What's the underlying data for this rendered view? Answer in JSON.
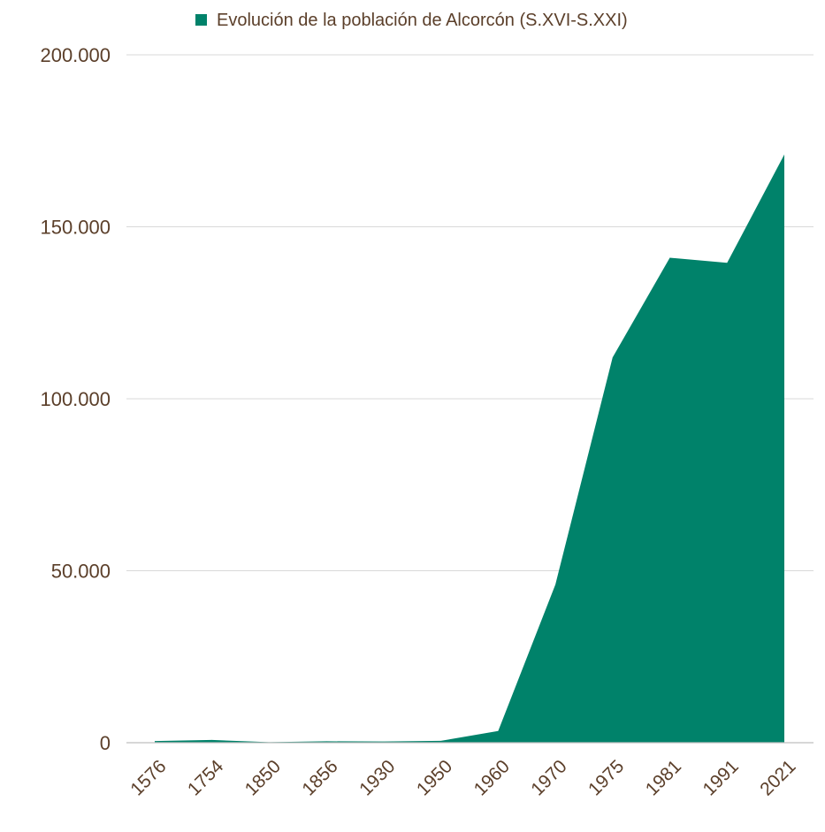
{
  "chart_data": {
    "type": "area",
    "legend": {
      "position": "top-center",
      "entries": [
        {
          "label": "Evolución de la población de Alcorcón (S.XVI-S.XXI)",
          "color": "#00826a"
        }
      ]
    },
    "categories": [
      "1576",
      "1754",
      "1850",
      "1856",
      "1930",
      "1950",
      "1960",
      "1970",
      "1975",
      "1981",
      "1991",
      "2021"
    ],
    "series": [
      {
        "name": "Evolución de la población de Alcorcón (S.XVI-S.XXI)",
        "color": "#00826a",
        "values": [
          500,
          800,
          150,
          400,
          350,
          550,
          3400,
          46000,
          112000,
          141000,
          139500,
          171000
        ]
      }
    ],
    "ylim": [
      0,
      200000
    ],
    "yticks": [
      {
        "value": 0,
        "label": "0"
      },
      {
        "value": 50000,
        "label": "50.000"
      },
      {
        "value": 100000,
        "label": "100.000"
      },
      {
        "value": 150000,
        "label": "150.000"
      },
      {
        "value": 200000,
        "label": "200.000"
      }
    ],
    "grid": true,
    "colors": {
      "text": "#5b3f2a",
      "grid": "#d9d9d9",
      "axis": "#bfbfbf"
    }
  }
}
